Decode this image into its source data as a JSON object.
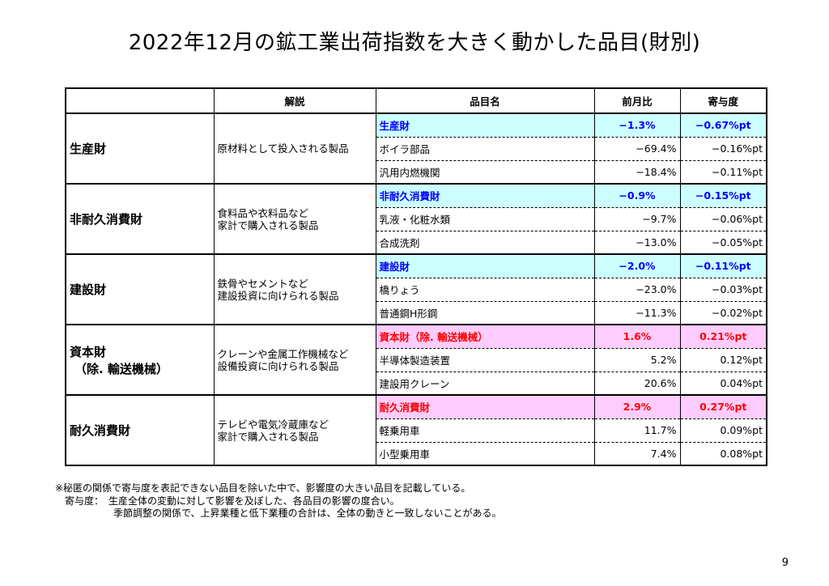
{
  "title": "2022年12月の鉱工業出荷指数を大きく動かした品目(財別)",
  "headers": {
    "blank": "",
    "desc": "解説",
    "item": "品目名",
    "mom": "前月比",
    "contrib": "寄与度"
  },
  "groups": [
    {
      "category": "生産財",
      "category_sub": "",
      "description": "原材料として投入される製品",
      "style": "blue",
      "rows": [
        {
          "item": "生産財",
          "mom": "−1.3%",
          "contrib": "−0.67%pt"
        },
        {
          "item": "ボイラ部品",
          "mom": "−69.4%",
          "contrib": "−0.16%pt"
        },
        {
          "item": "汎用内燃機関",
          "mom": "−18.4%",
          "contrib": "−0.11%pt"
        }
      ]
    },
    {
      "category": "非耐久消費財",
      "category_sub": "",
      "description": "食料品や衣料品など\n家計で購入される製品",
      "style": "blue",
      "rows": [
        {
          "item": "非耐久消費財",
          "mom": "−0.9%",
          "contrib": "−0.15%pt"
        },
        {
          "item": "乳液・化粧水類",
          "mom": "−9.7%",
          "contrib": "−0.06%pt"
        },
        {
          "item": "合成洗剤",
          "mom": "−13.0%",
          "contrib": "−0.05%pt"
        }
      ]
    },
    {
      "category": "建設財",
      "category_sub": "",
      "description": "鉄骨やセメントなど\n建設投資に向けられる製品",
      "style": "blue",
      "rows": [
        {
          "item": "建設財",
          "mom": "−2.0%",
          "contrib": "−0.11%pt"
        },
        {
          "item": "橋りょう",
          "mom": "−23.0%",
          "contrib": "−0.03%pt"
        },
        {
          "item": "普通鋼H形鋼",
          "mom": "−11.3%",
          "contrib": "−0.02%pt"
        }
      ]
    },
    {
      "category": "資本財",
      "category_sub": "（除. 輸送機械）",
      "description": "クレーンや金属工作機械など\n設備投資に向けられる製品",
      "style": "pink",
      "rows": [
        {
          "item": "資本財（除. 輸送機械）",
          "mom": "1.6%",
          "contrib": "0.21%pt"
        },
        {
          "item": "半導体製造装置",
          "mom": "5.2%",
          "contrib": "0.12%pt"
        },
        {
          "item": "建設用クレーン",
          "mom": "20.6%",
          "contrib": "0.04%pt"
        }
      ]
    },
    {
      "category": "耐久消費財",
      "category_sub": "",
      "description": "テレビや電気冷蔵庫など\n家計で購入される製品",
      "style": "pink",
      "rows": [
        {
          "item": "耐久消費財",
          "mom": "2.9%",
          "contrib": "0.27%pt"
        },
        {
          "item": "軽乗用車",
          "mom": "11.7%",
          "contrib": "0.09%pt"
        },
        {
          "item": "小型乗用車",
          "mom": "7.4%",
          "contrib": "0.08%pt"
        }
      ]
    }
  ],
  "notes": [
    "※秘匿の関係で寄与度を表記できない品目を除いた中で、影響度の大きい品目を記載している。",
    "　寄与度：　生産全体の変動に対して影響を及ぼした、各品目の影響の度合い。",
    "　　　　　　季節調整の関係で、上昇業種と低下業種の合計は、全体の動きと一致しないことがある。"
  ],
  "page_number": "9"
}
